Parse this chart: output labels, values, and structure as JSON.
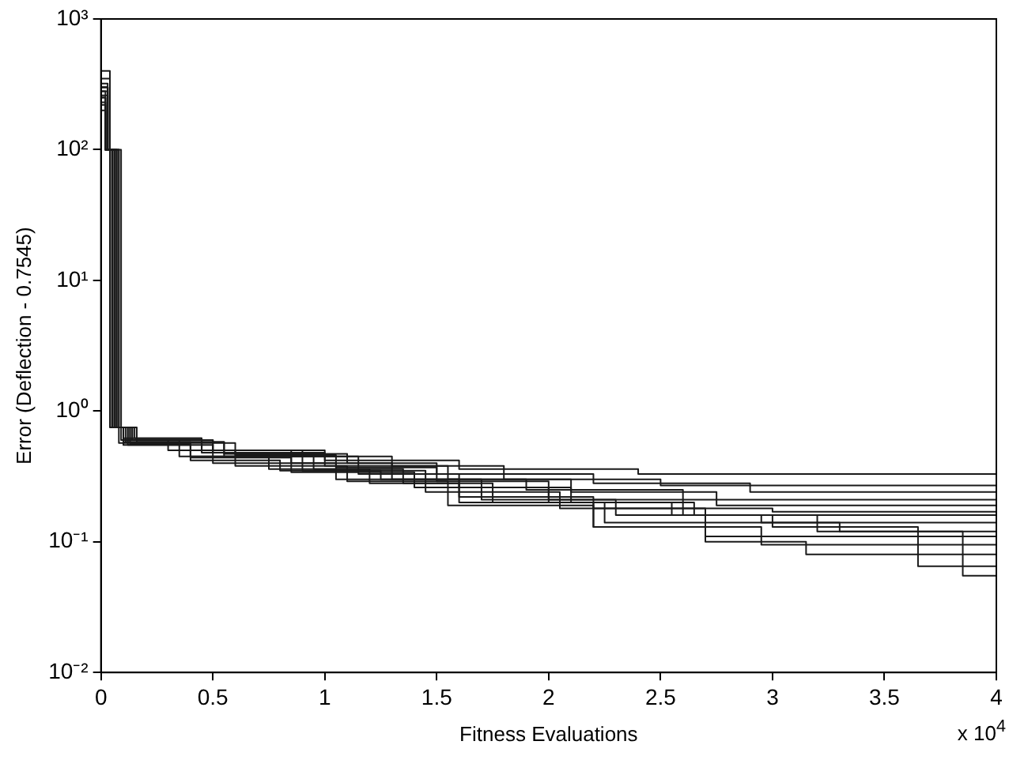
{
  "chart_data": {
    "type": "step",
    "xlabel": "Fitness Evaluations",
    "ylabel": "Error (Deflection - 0.7545)",
    "annotations": [
      "x 10$^{4}$"
    ],
    "log": "y",
    "xlim": [
      0,
      4
    ],
    "xticks": [
      0,
      0.5,
      1,
      1.5,
      2,
      2.5,
      3,
      3.5,
      4
    ],
    "ylim": [
      0.01,
      1000
    ],
    "yticks": [
      {
        "value": 0.01,
        "label": "10⁻²"
      },
      {
        "value": 0.1,
        "label": "10⁻¹"
      },
      {
        "value": 1,
        "label": "10⁰"
      },
      {
        "value": 10,
        "label": "10¹"
      },
      {
        "value": 100,
        "label": "10²"
      },
      {
        "value": 1000,
        "label": "10³"
      }
    ],
    "series": [
      {
        "color": "#1a1a1a",
        "x": [
          0,
          0.03,
          0.07,
          0.14,
          0.5,
          1.0,
          1.6,
          2.4,
          3.1,
          4
        ],
        "values": [
          700,
          300,
          100,
          0.75,
          0.6,
          0.5,
          0.42,
          0.36,
          0.33,
          0.33
        ]
      },
      {
        "color": "#1a1a1a",
        "x": [
          0,
          0.02,
          0.05,
          0.1,
          0.45,
          0.9,
          1.3,
          1.8,
          2.5,
          3.3,
          4
        ],
        "values": [
          600,
          250,
          100,
          0.75,
          0.62,
          0.5,
          0.45,
          0.38,
          0.3,
          0.27,
          0.27
        ]
      },
      {
        "color": "#1a1a1a",
        "x": [
          0,
          0.04,
          0.08,
          0.16,
          0.55,
          1.1,
          1.5,
          2.2,
          2.9,
          3.6,
          4
        ],
        "values": [
          800,
          350,
          100,
          0.75,
          0.58,
          0.47,
          0.4,
          0.33,
          0.28,
          0.24,
          0.24
        ]
      },
      {
        "color": "#1a1a1a",
        "x": [
          0,
          0.02,
          0.06,
          0.12,
          0.4,
          0.8,
          1.25,
          1.9,
          2.6,
          3.2,
          4
        ],
        "values": [
          500,
          200,
          100,
          0.75,
          0.55,
          0.42,
          0.35,
          0.3,
          0.25,
          0.21,
          0.21
        ]
      },
      {
        "color": "#1a1a1a",
        "x": [
          0,
          0.03,
          0.05,
          0.09,
          0.5,
          1.0,
          1.55,
          2.1,
          2.75,
          3.4,
          4
        ],
        "values": [
          650,
          280,
          100,
          0.75,
          0.6,
          0.48,
          0.38,
          0.3,
          0.24,
          0.19,
          0.19
        ]
      },
      {
        "color": "#1a1a1a",
        "x": [
          0,
          0.03,
          0.07,
          0.13,
          0.35,
          0.75,
          1.2,
          1.6,
          2.2,
          3.0,
          3.7,
          4
        ],
        "values": [
          700,
          300,
          100,
          0.75,
          0.6,
          0.45,
          0.36,
          0.28,
          0.22,
          0.18,
          0.17,
          0.17
        ]
      },
      {
        "color": "#1a1a1a",
        "x": [
          0,
          0.02,
          0.04,
          0.08,
          0.6,
          1.05,
          1.5,
          2.0,
          2.65,
          3.15,
          4
        ],
        "values": [
          550,
          220,
          100,
          0.75,
          0.57,
          0.46,
          0.37,
          0.29,
          0.2,
          0.16,
          0.16
        ]
      },
      {
        "color": "#1a1a1a",
        "x": [
          0,
          0.04,
          0.09,
          0.15,
          0.45,
          0.85,
          1.3,
          1.7,
          2.3,
          2.95,
          3.5,
          4
        ],
        "values": [
          900,
          400,
          100,
          0.75,
          0.62,
          0.5,
          0.4,
          0.3,
          0.21,
          0.16,
          0.14,
          0.14
        ]
      },
      {
        "color": "#1a1a1a",
        "x": [
          0,
          0.03,
          0.06,
          0.11,
          0.4,
          0.9,
          1.45,
          2.05,
          2.7,
          3.3,
          3.85,
          4
        ],
        "values": [
          600,
          260,
          100,
          0.75,
          0.58,
          0.45,
          0.35,
          0.24,
          0.18,
          0.14,
          0.12,
          0.12
        ]
      },
      {
        "color": "#1a1a1a",
        "x": [
          0,
          0.02,
          0.05,
          0.1,
          0.5,
          1.05,
          1.6,
          2.2,
          2.7,
          3.5,
          4
        ],
        "values": [
          500,
          230,
          100,
          0.75,
          0.55,
          0.4,
          0.3,
          0.2,
          0.13,
          0.11,
          0.11
        ]
      },
      {
        "color": "#1a1a1a",
        "x": [
          0,
          0.03,
          0.08,
          0.14,
          0.3,
          0.6,
          1.1,
          1.55,
          2.2,
          2.95,
          3.8,
          4
        ],
        "values": [
          750,
          320,
          100,
          0.75,
          0.6,
          0.5,
          0.38,
          0.29,
          0.19,
          0.13,
          0.095,
          0.095
        ]
      },
      {
        "color": "#1a1a1a",
        "x": [
          0,
          0.02,
          0.06,
          0.12,
          0.45,
          0.95,
          1.35,
          1.75,
          2.25,
          2.7,
          3.15,
          3.8,
          4
        ],
        "values": [
          650,
          280,
          100,
          0.75,
          0.6,
          0.48,
          0.36,
          0.28,
          0.2,
          0.14,
          0.1,
          0.08,
          0.08
        ]
      },
      {
        "color": "#1a1a1a",
        "x": [
          0,
          0.03,
          0.05,
          0.1,
          0.55,
          1.15,
          1.6,
          2.1,
          2.55,
          3.0,
          3.65,
          3.88,
          4
        ],
        "values": [
          700,
          300,
          100,
          0.75,
          0.58,
          0.45,
          0.33,
          0.26,
          0.2,
          0.16,
          0.13,
          0.065,
          0.065
        ]
      },
      {
        "color": "#1a1a1a",
        "x": [
          0,
          0.02,
          0.07,
          0.13,
          0.4,
          0.85,
          1.4,
          2.0,
          2.6,
          3.2,
          3.85,
          3.95,
          4
        ],
        "values": [
          600,
          250,
          100,
          0.75,
          0.56,
          0.44,
          0.34,
          0.26,
          0.21,
          0.16,
          0.12,
          0.055,
          0.055
        ]
      }
    ]
  }
}
